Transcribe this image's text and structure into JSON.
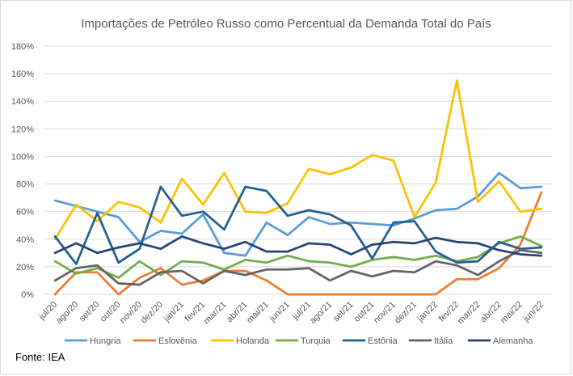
{
  "chart_data": {
    "type": "line",
    "title": "Importações de Petróleo Russo como Percentual da Demanda Total do País",
    "xlabel": "",
    "ylabel": "",
    "ylim": [
      0,
      180
    ],
    "y_tick_step": 20,
    "y_tick_suffix": "%",
    "grid": true,
    "legend_position": "bottom",
    "categories": [
      "jul/20",
      "ago/20",
      "set/20",
      "out/20",
      "nov/20",
      "dez/20",
      "jan/21",
      "fev/21",
      "mar/21",
      "abr/21",
      "mai/21",
      "jun/21",
      "jul/21",
      "ago/21",
      "set/21",
      "out/21",
      "nov/21",
      "dez/21",
      "jan/22",
      "fev/22",
      "mar/22",
      "abr/22",
      "mai/22",
      "jun/22"
    ],
    "series": [
      {
        "name": "Hungria",
        "color": "#5b9bd5",
        "values": [
          68,
          64,
          60,
          56,
          38,
          46,
          44,
          58,
          30,
          28,
          52,
          43,
          56,
          51,
          52,
          51,
          50,
          55,
          61,
          62,
          71,
          88,
          77,
          78
        ]
      },
      {
        "name": "Eslovênia",
        "color": "#ed7d31",
        "values": [
          0,
          16,
          16,
          0,
          12,
          19,
          7,
          10,
          17,
          17,
          10,
          0,
          0,
          0,
          0,
          0,
          0,
          0,
          0,
          11,
          11,
          19,
          36,
          74
        ]
      },
      {
        "name": "Holanda",
        "color": "#ffc000",
        "values": [
          40,
          65,
          53,
          67,
          63,
          52,
          84,
          65,
          88,
          60,
          59,
          66,
          91,
          87,
          92,
          101,
          97,
          56,
          81,
          155,
          67,
          82,
          60,
          62
        ]
      },
      {
        "name": "Turquia",
        "color": "#70ad47",
        "values": [
          24,
          15,
          19,
          12,
          24,
          14,
          24,
          23,
          18,
          25,
          23,
          28,
          24,
          23,
          20,
          25,
          27,
          25,
          28,
          24,
          27,
          37,
          42,
          35
        ]
      },
      {
        "name": "Estônia",
        "color": "#255e91",
        "values": [
          42,
          22,
          59,
          23,
          33,
          78,
          57,
          60,
          47,
          78,
          75,
          57,
          61,
          58,
          50,
          26,
          52,
          53,
          31,
          23,
          24,
          38,
          33,
          34
        ]
      },
      {
        "name": "Itália",
        "color": "#636363",
        "values": [
          10,
          19,
          21,
          8,
          7,
          16,
          17,
          8,
          17,
          14,
          18,
          18,
          19,
          10,
          17,
          13,
          17,
          16,
          24,
          21,
          14,
          24,
          32,
          30
        ]
      },
      {
        "name": "Alemanha",
        "color": "#264478",
        "values": [
          30,
          37,
          30,
          34,
          37,
          33,
          42,
          37,
          33,
          38,
          31,
          31,
          37,
          36,
          29,
          36,
          38,
          37,
          41,
          38,
          37,
          32,
          29,
          28
        ]
      }
    ]
  },
  "source": "Fonte: IEA"
}
